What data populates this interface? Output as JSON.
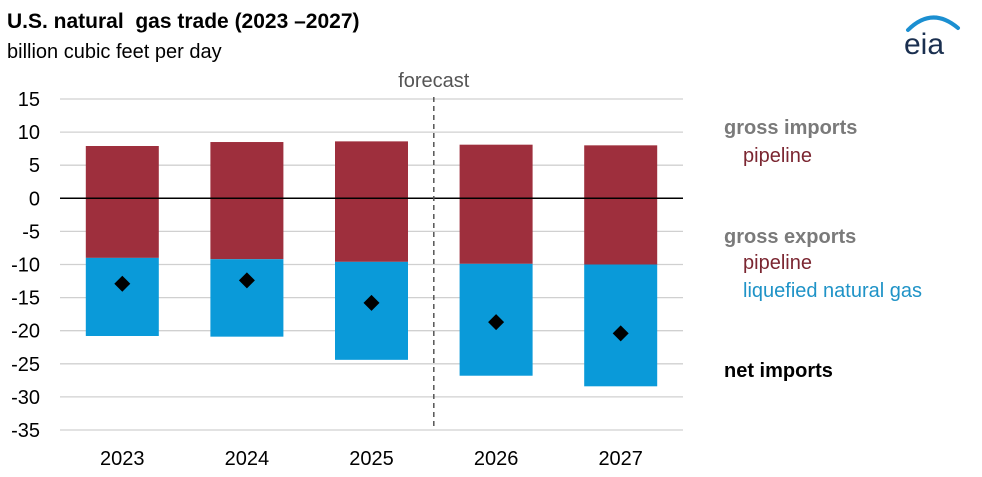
{
  "title": "U.S. natural  gas trade (2023 –2027)",
  "subtitle": "billion cubic feet per day",
  "logo_text": "eia",
  "forecast_label": "forecast",
  "colors": {
    "pipeline": "#9e2f3d",
    "lng": "#0a9ad9",
    "net": "#000000",
    "grid": "#d0d0d0",
    "zero": "#000000",
    "logo_arc": "#1b8fd1"
  },
  "legend": {
    "gross_imports": "gross imports",
    "imports_pipeline": "pipeline",
    "gross_exports": "gross exports",
    "exports_pipeline": "pipeline",
    "exports_lng": "liquefied natural gas",
    "net_imports": "net imports"
  },
  "chart_data": {
    "type": "bar",
    "stacked": true,
    "title": "U.S. natural  gas trade (2023 –2027)",
    "ylabel": "billion cubic feet per day",
    "categories": [
      "2023",
      "2024",
      "2025",
      "2026",
      "2027"
    ],
    "ylim": [
      -35,
      15
    ],
    "yticks": [
      15,
      10,
      5,
      0,
      -5,
      -10,
      -15,
      -20,
      -25,
      -30,
      -35
    ],
    "forecast_start_after": "2025",
    "series": [
      {
        "name": "gross imports pipeline",
        "values": [
          7.9,
          8.5,
          8.6,
          8.1,
          8.0
        ]
      },
      {
        "name": "gross exports pipeline",
        "values": [
          -9.0,
          -9.2,
          -9.6,
          -9.9,
          -10.0
        ]
      },
      {
        "name": "gross exports liquefied natural gas",
        "values": [
          -11.8,
          -11.7,
          -14.8,
          -16.9,
          -18.4
        ]
      },
      {
        "name": "net imports",
        "type": "marker",
        "values": [
          -12.9,
          -12.4,
          -15.8,
          -18.7,
          -20.4
        ]
      }
    ]
  }
}
